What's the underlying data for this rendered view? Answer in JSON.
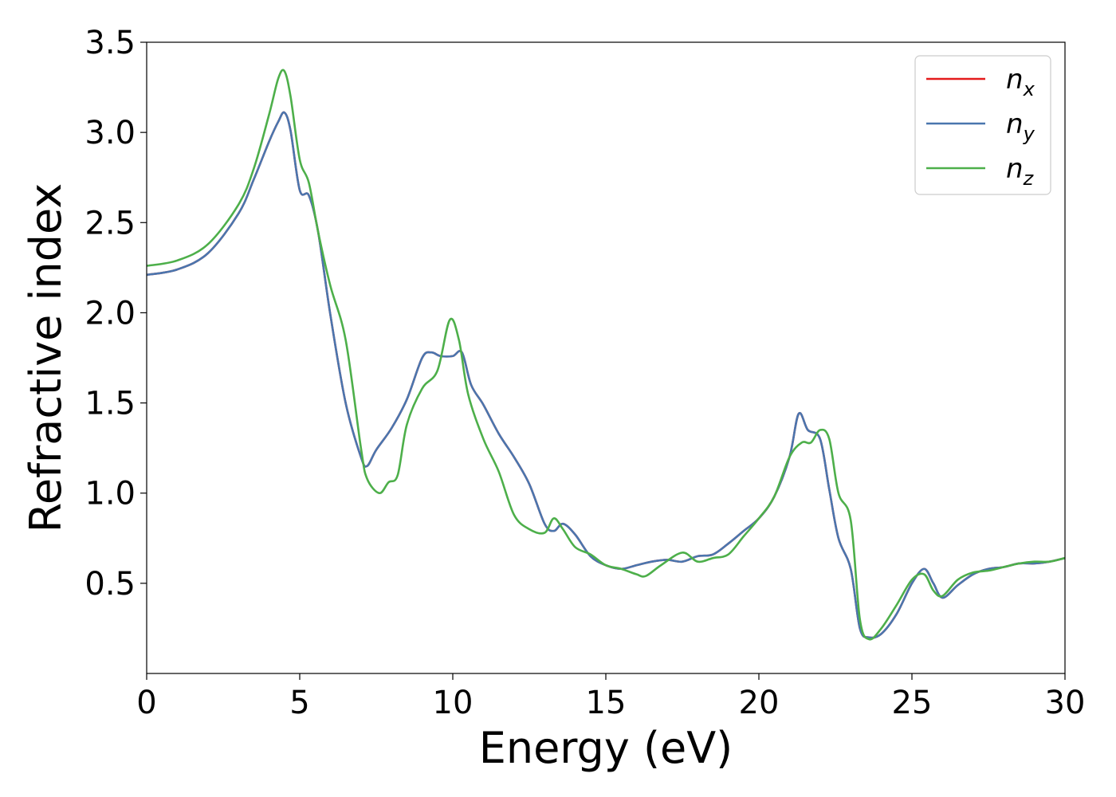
{
  "chart_data": {
    "type": "line",
    "title": "",
    "xlabel": "Energy (eV)",
    "ylabel": "Refractive index",
    "xlim": [
      0,
      30
    ],
    "ylim": [
      0.0,
      3.5
    ],
    "x_ticks": [
      0,
      5,
      10,
      15,
      20,
      25,
      30
    ],
    "x_tick_labels": [
      "0",
      "5",
      "10",
      "15",
      "20",
      "25",
      "30"
    ],
    "y_ticks": [
      0.5,
      1.0,
      1.5,
      2.0,
      2.5,
      3.0,
      3.5
    ],
    "y_tick_labels": [
      "0.5",
      "1.0",
      "1.5",
      "2.0",
      "2.5",
      "3.0",
      "3.5"
    ],
    "grid": false,
    "legend_position": "top-right",
    "series": [
      {
        "name": "n",
        "subscript": "x",
        "color": "#e41a1c",
        "x": [
          0,
          1,
          2,
          3,
          3.5,
          4,
          4.3,
          4.5,
          4.7,
          5,
          5.3,
          5.6,
          6,
          6.5,
          7,
          7.2,
          7.5,
          8,
          8.5,
          9,
          9.3,
          9.6,
          10,
          10.3,
          10.6,
          11,
          11.5,
          12,
          12.5,
          13,
          13.3,
          13.6,
          14,
          14.5,
          15,
          15.5,
          16,
          16.5,
          17,
          17.5,
          18,
          18.5,
          19,
          19.5,
          20,
          20.5,
          21,
          21.3,
          21.6,
          22,
          22.3,
          22.6,
          23,
          23.3,
          23.6,
          24,
          24.5,
          25,
          25.4,
          25.7,
          26,
          26.5,
          27,
          27.5,
          28,
          28.5,
          29,
          29.5,
          30
        ],
        "y": [
          2.21,
          2.24,
          2.33,
          2.55,
          2.74,
          2.95,
          3.06,
          3.11,
          3.01,
          2.68,
          2.65,
          2.45,
          1.99,
          1.5,
          1.2,
          1.15,
          1.24,
          1.36,
          1.52,
          1.75,
          1.78,
          1.76,
          1.76,
          1.78,
          1.6,
          1.49,
          1.33,
          1.2,
          1.05,
          0.83,
          0.79,
          0.83,
          0.77,
          0.65,
          0.6,
          0.58,
          0.6,
          0.62,
          0.63,
          0.62,
          0.65,
          0.66,
          0.72,
          0.79,
          0.86,
          0.98,
          1.2,
          1.44,
          1.35,
          1.3,
          1.02,
          0.75,
          0.58,
          0.25,
          0.2,
          0.22,
          0.33,
          0.5,
          0.58,
          0.5,
          0.42,
          0.49,
          0.55,
          0.58,
          0.59,
          0.61,
          0.61,
          0.62,
          0.64
        ]
      },
      {
        "name": "n",
        "subscript": "y",
        "color": "#4a76ae",
        "x": [
          0,
          1,
          2,
          3,
          3.5,
          4,
          4.3,
          4.5,
          4.7,
          5,
          5.3,
          5.6,
          6,
          6.5,
          7,
          7.2,
          7.5,
          8,
          8.5,
          9,
          9.3,
          9.6,
          10,
          10.3,
          10.6,
          11,
          11.5,
          12,
          12.5,
          13,
          13.3,
          13.6,
          14,
          14.5,
          15,
          15.5,
          16,
          16.5,
          17,
          17.5,
          18,
          18.5,
          19,
          19.5,
          20,
          20.5,
          21,
          21.3,
          21.6,
          22,
          22.3,
          22.6,
          23,
          23.3,
          23.6,
          24,
          24.5,
          25,
          25.4,
          25.7,
          26,
          26.5,
          27,
          27.5,
          28,
          28.5,
          29,
          29.5,
          30
        ],
        "y": [
          2.21,
          2.24,
          2.33,
          2.55,
          2.74,
          2.95,
          3.06,
          3.11,
          3.01,
          2.68,
          2.65,
          2.45,
          1.99,
          1.5,
          1.2,
          1.15,
          1.24,
          1.36,
          1.52,
          1.75,
          1.78,
          1.76,
          1.76,
          1.78,
          1.6,
          1.49,
          1.33,
          1.2,
          1.05,
          0.83,
          0.79,
          0.83,
          0.77,
          0.65,
          0.6,
          0.58,
          0.6,
          0.62,
          0.63,
          0.62,
          0.65,
          0.66,
          0.72,
          0.79,
          0.86,
          0.98,
          1.2,
          1.44,
          1.35,
          1.3,
          1.02,
          0.75,
          0.58,
          0.25,
          0.2,
          0.22,
          0.33,
          0.5,
          0.58,
          0.5,
          0.42,
          0.49,
          0.55,
          0.58,
          0.59,
          0.61,
          0.61,
          0.62,
          0.64
        ]
      },
      {
        "name": "n",
        "subscript": "z",
        "color": "#4daf4a",
        "x": [
          0,
          1,
          2,
          3,
          3.5,
          4,
          4.3,
          4.5,
          4.7,
          5,
          5.3,
          5.6,
          6,
          6.5,
          7,
          7.2,
          7.6,
          7.9,
          8.2,
          8.5,
          9,
          9.5,
          9.9,
          10.2,
          10.5,
          11,
          11.5,
          12,
          12.5,
          13,
          13.3,
          13.6,
          14,
          14.5,
          15,
          15.5,
          16,
          16.3,
          16.8,
          17.5,
          18,
          18.5,
          19,
          19.5,
          20,
          20.5,
          21,
          21.4,
          21.7,
          22,
          22.3,
          22.6,
          23,
          23.3,
          23.6,
          24,
          24.5,
          25,
          25.4,
          25.7,
          26,
          26.5,
          27,
          27.5,
          28,
          28.5,
          29,
          29.5,
          30
        ],
        "y": [
          2.26,
          2.29,
          2.38,
          2.6,
          2.8,
          3.1,
          3.3,
          3.34,
          3.2,
          2.85,
          2.72,
          2.45,
          2.15,
          1.85,
          1.25,
          1.08,
          1.0,
          1.06,
          1.1,
          1.38,
          1.58,
          1.68,
          1.96,
          1.85,
          1.55,
          1.3,
          1.12,
          0.88,
          0.8,
          0.78,
          0.86,
          0.8,
          0.7,
          0.66,
          0.6,
          0.58,
          0.55,
          0.54,
          0.6,
          0.67,
          0.62,
          0.64,
          0.66,
          0.76,
          0.86,
          0.98,
          1.2,
          1.28,
          1.28,
          1.35,
          1.3,
          1.0,
          0.85,
          0.3,
          0.19,
          0.25,
          0.38,
          0.52,
          0.55,
          0.46,
          0.43,
          0.52,
          0.56,
          0.57,
          0.59,
          0.61,
          0.62,
          0.62,
          0.64
        ]
      }
    ]
  }
}
